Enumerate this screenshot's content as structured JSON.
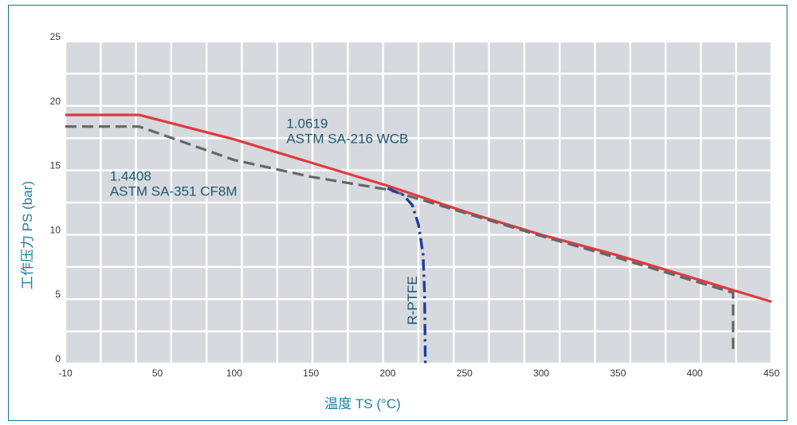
{
  "chart_data": {
    "type": "line",
    "title": "",
    "xlabel": "温度 TS (°C)",
    "ylabel": "工作压力 PS (bar)",
    "xlim": [
      -10,
      450
    ],
    "ylim": [
      0,
      25
    ],
    "x_ticks": [
      -10,
      50,
      100,
      150,
      200,
      250,
      300,
      350,
      400,
      450
    ],
    "y_ticks": [
      0,
      5,
      10,
      15,
      20,
      25
    ],
    "grid": true,
    "legend": "none",
    "series": [
      {
        "name": "1.0619 ASTM SA-216 WCB",
        "style": "solid",
        "color": "#e03a3e",
        "points": [
          [
            -10,
            19.3
          ],
          [
            38,
            19.3
          ],
          [
            100,
            17.4
          ],
          [
            200,
            13.8
          ],
          [
            250,
            11.8
          ],
          [
            300,
            10.0
          ],
          [
            350,
            8.4
          ],
          [
            400,
            6.6
          ],
          [
            450,
            4.8
          ]
        ]
      },
      {
        "name": "1.4408 ASTM SA-351 CF8M",
        "style": "dashed",
        "color": "#666666",
        "points": [
          [
            -10,
            18.4
          ],
          [
            38,
            18.4
          ],
          [
            50,
            17.9
          ],
          [
            100,
            15.8
          ],
          [
            150,
            14.5
          ],
          [
            200,
            13.5
          ],
          [
            250,
            11.7
          ],
          [
            300,
            9.9
          ],
          [
            350,
            8.2
          ],
          [
            400,
            6.4
          ],
          [
            425,
            5.5
          ],
          [
            425,
            0.8
          ]
        ]
      },
      {
        "name": "R-PTFE",
        "style": "dashdot",
        "color": "#1e3f9e",
        "points": [
          [
            200,
            13.6
          ],
          [
            210,
            13.1
          ],
          [
            216,
            12.3
          ],
          [
            220,
            10.8
          ],
          [
            223,
            8.5
          ],
          [
            224,
            5.5
          ],
          [
            224.5,
            0
          ]
        ]
      }
    ],
    "annotations": [
      {
        "name": "wcb-label",
        "lines": [
          "1.0619",
          "ASTM SA-216 WCB"
        ],
        "at": [
          134,
          18.3
        ]
      },
      {
        "name": "cf8m-label",
        "lines": [
          "1.4408",
          "ASTM SA-351 CF8M"
        ],
        "at": [
          19,
          14.2
        ]
      },
      {
        "name": "ptfe-label",
        "lines": [
          "R-PTFE"
        ],
        "at": [
          219,
          3.0
        ],
        "rotate": -90
      }
    ]
  }
}
